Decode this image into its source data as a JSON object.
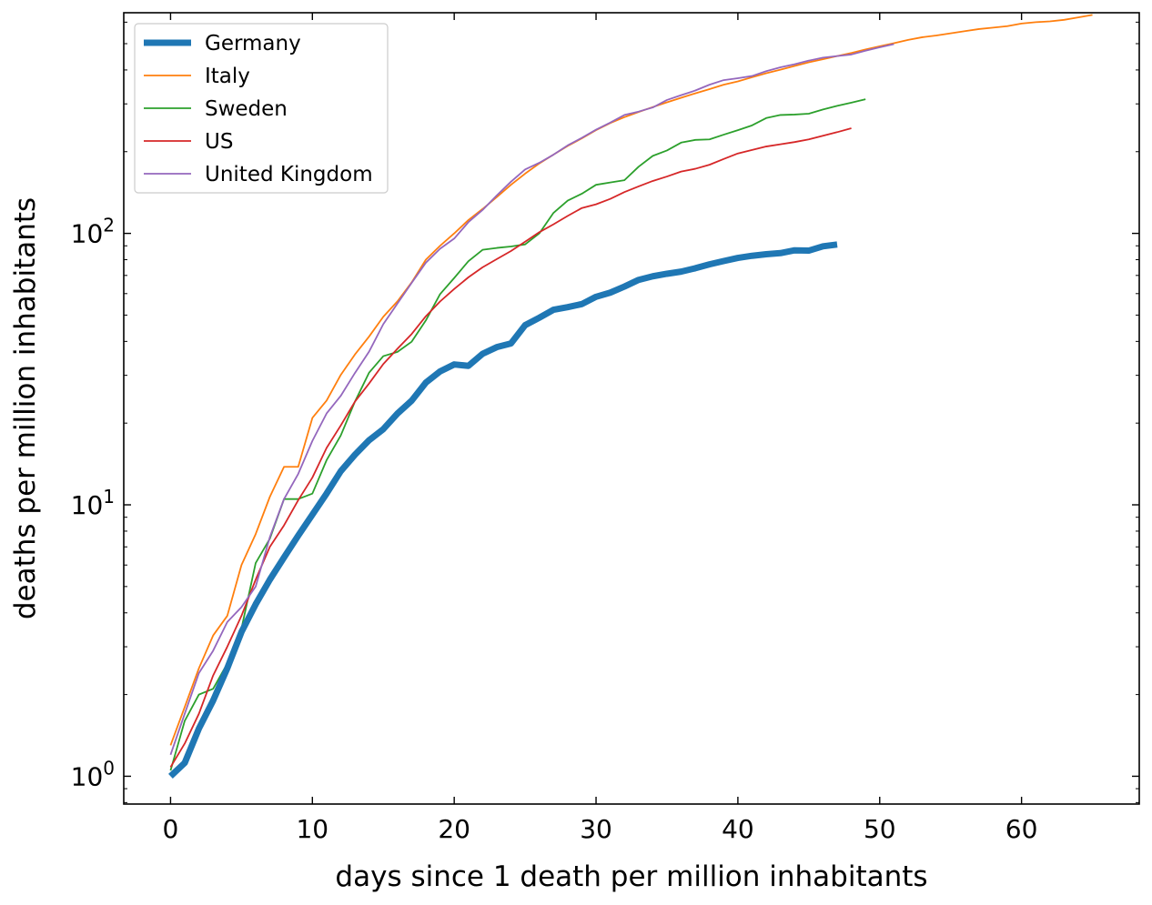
{
  "chart_data": {
    "type": "line",
    "xlabel": "days since 1 death per million inhabitants",
    "ylabel": "deaths per million inhabitants",
    "yscale": "log",
    "xlim": [
      -3.3,
      68.3
    ],
    "ylim": [
      0.79,
      650
    ],
    "x_ticks": [
      0,
      10,
      20,
      30,
      40,
      50,
      60
    ],
    "x_tick_labels": [
      "0",
      "10",
      "20",
      "30",
      "40",
      "50",
      "60"
    ],
    "y_ticks": [
      1,
      10,
      100
    ],
    "y_tick_labels": [
      {
        "base": "10",
        "exp": "0"
      },
      {
        "base": "10",
        "exp": "1"
      },
      {
        "base": "10",
        "exp": "2"
      }
    ],
    "legend_position": "upper-left",
    "series": [
      {
        "name": "Germany",
        "color": "#1f77b4",
        "emphasis": "thick",
        "x": [
          0,
          1,
          2,
          3,
          4,
          5,
          6,
          7,
          8,
          9,
          10,
          11,
          12,
          13,
          14,
          15,
          16,
          17,
          18,
          19,
          20,
          21,
          22,
          23,
          24,
          25,
          26,
          27,
          28,
          29,
          30,
          31,
          32,
          33,
          34,
          35,
          36,
          37,
          38,
          39,
          40,
          41,
          42,
          43,
          44,
          45,
          46,
          47
        ],
        "y": [
          1.0,
          1.12,
          1.5,
          1.9,
          2.5,
          3.4,
          4.3,
          5.3,
          6.4,
          7.7,
          9.2,
          11.0,
          13.3,
          15.3,
          17.3,
          19.0,
          21.7,
          24.2,
          28.2,
          31.0,
          32.9,
          32.5,
          36.0,
          38.1,
          39.3,
          45.9,
          48.9,
          52.3,
          53.5,
          54.9,
          58.4,
          60.5,
          63.7,
          67.4,
          69.5,
          71.0,
          72.3,
          74.4,
          76.9,
          79.1,
          81.2,
          82.7,
          83.8,
          84.6,
          86.6,
          86.4,
          89.6,
          91.0
        ]
      },
      {
        "name": "Italy",
        "color": "#ff7f0e",
        "x": [
          0,
          1,
          2,
          3,
          4,
          5,
          6,
          7,
          8,
          9,
          10,
          11,
          12,
          13,
          14,
          15,
          16,
          17,
          18,
          19,
          20,
          21,
          22,
          23,
          24,
          25,
          26,
          27,
          28,
          29,
          30,
          31,
          32,
          33,
          34,
          35,
          36,
          37,
          38,
          39,
          40,
          41,
          42,
          43,
          44,
          45,
          46,
          47,
          48,
          49,
          50,
          51,
          52,
          53,
          54,
          55,
          56,
          57,
          58,
          59,
          60,
          61,
          62,
          63,
          64,
          65
        ],
        "y": [
          1.3,
          1.8,
          2.5,
          3.3,
          3.9,
          6.0,
          7.8,
          10.7,
          13.8,
          13.8,
          20.9,
          24.2,
          30.1,
          35.8,
          41.7,
          49.3,
          56.2,
          66.0,
          80.0,
          90.0,
          100,
          112,
          123,
          136,
          151,
          166,
          181,
          195,
          210,
          224,
          240,
          255,
          268,
          280,
          292,
          304,
          316,
          328,
          340,
          353,
          363,
          376,
          389,
          401,
          414,
          427,
          438,
          450,
          462,
          476,
          489,
          502,
          516,
          528,
          536,
          546,
          556,
          566,
          573,
          580,
          593,
          600,
          604,
          612,
          625,
          638
        ]
      },
      {
        "name": "Sweden",
        "color": "#2ca02c",
        "x": [
          0,
          1,
          2,
          3,
          4,
          5,
          6,
          7,
          8,
          9,
          10,
          11,
          12,
          13,
          14,
          15,
          16,
          17,
          18,
          19,
          20,
          21,
          22,
          23,
          24,
          25,
          26,
          27,
          28,
          29,
          30,
          31,
          32,
          33,
          34,
          35,
          36,
          37,
          38,
          39,
          40,
          41,
          42,
          43,
          44,
          45,
          46,
          47,
          48,
          49
        ],
        "y": [
          1.05,
          1.6,
          2.0,
          2.1,
          2.6,
          3.5,
          6.1,
          7.5,
          10.5,
          10.5,
          11.0,
          14.6,
          18.0,
          24.0,
          30.7,
          35.3,
          36.6,
          39.9,
          47.8,
          59.7,
          68.5,
          79.0,
          87.0,
          88.4,
          89.5,
          91.1,
          100,
          119,
          132,
          140,
          151,
          154,
          157,
          176,
          193,
          202,
          216,
          221,
          222,
          231,
          240,
          250,
          266,
          273,
          274,
          276,
          286,
          295,
          303,
          312
        ]
      },
      {
        "name": "US",
        "color": "#d62728",
        "x": [
          0,
          1,
          2,
          3,
          4,
          5,
          6,
          7,
          8,
          9,
          10,
          11,
          12,
          13,
          14,
          15,
          16,
          17,
          18,
          19,
          20,
          21,
          22,
          23,
          24,
          25,
          26,
          27,
          28,
          29,
          30,
          31,
          32,
          33,
          34,
          35,
          36,
          37,
          38,
          39,
          40,
          41,
          42,
          43,
          44,
          45,
          46,
          47,
          48
        ],
        "y": [
          1.08,
          1.32,
          1.7,
          2.35,
          3.0,
          3.9,
          5.3,
          7.0,
          8.4,
          10.4,
          12.6,
          16.2,
          19.6,
          24.0,
          28.0,
          33.0,
          37.6,
          42.6,
          49.5,
          56.1,
          62.4,
          68.9,
          75.0,
          80.4,
          86.1,
          93.2,
          101,
          108,
          116,
          124,
          128,
          134,
          142,
          149,
          156,
          162,
          169,
          173,
          179,
          188,
          197,
          203,
          209,
          213,
          217,
          222,
          229,
          236,
          244
        ]
      },
      {
        "name": "United Kingdom",
        "color": "#9467bd",
        "x": [
          0,
          1,
          2,
          3,
          4,
          5,
          6,
          7,
          8,
          9,
          10,
          11,
          12,
          13,
          14,
          15,
          16,
          17,
          18,
          19,
          20,
          21,
          22,
          23,
          24,
          25,
          26,
          27,
          28,
          29,
          30,
          31,
          32,
          33,
          34,
          35,
          36,
          37,
          38,
          39,
          40,
          41,
          42,
          43,
          44,
          45,
          46,
          47,
          48,
          49,
          50,
          51
        ],
        "y": [
          1.2,
          1.7,
          2.4,
          2.9,
          3.7,
          4.2,
          5.0,
          7.6,
          10.5,
          13.0,
          17.2,
          21.7,
          25.2,
          30.6,
          36.7,
          46.3,
          55.2,
          65.7,
          78.0,
          87.8,
          95.7,
          110,
          122,
          138,
          155,
          172,
          182,
          195,
          211,
          225,
          241,
          256,
          273,
          281,
          291,
          310,
          323,
          336,
          353,
          367,
          373,
          380,
          396,
          409,
          420,
          433,
          444,
          450,
          456,
          471,
          485,
          498
        ]
      }
    ]
  }
}
